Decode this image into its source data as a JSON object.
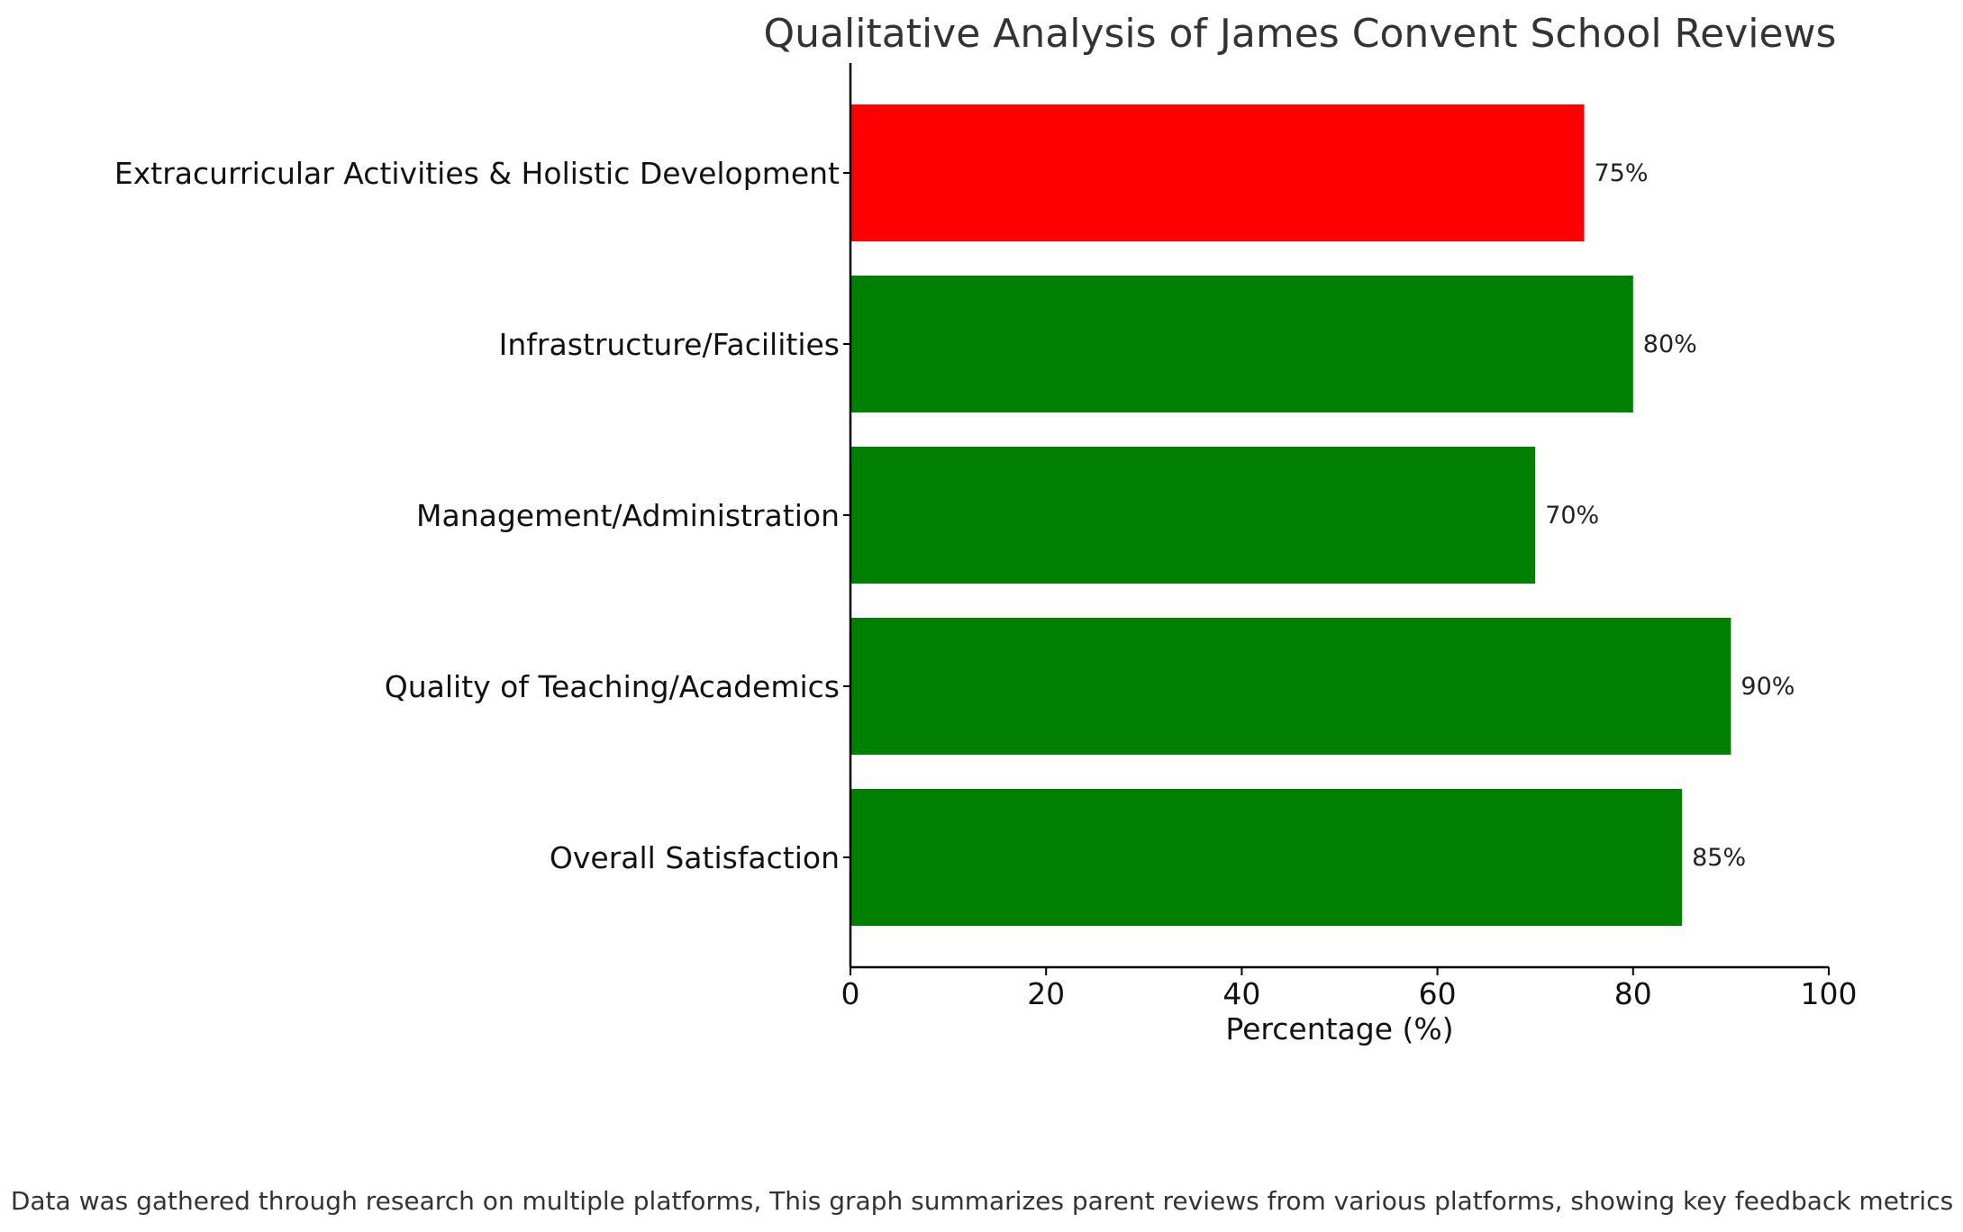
{
  "chart_data": {
    "type": "bar",
    "orientation": "horizontal",
    "title": "Qualitative Analysis of James Convent School Reviews",
    "xlabel": "Percentage (%)",
    "ylabel": "",
    "xlim": [
      0,
      100
    ],
    "xticks": [
      0,
      20,
      40,
      60,
      80,
      100
    ],
    "grid": false,
    "categories": [
      "Overall Satisfaction",
      "Quality of Teaching/Academics",
      "Management/Administration",
      "Infrastructure/Facilities",
      "Extracurricular Activities & Holistic Development"
    ],
    "values": [
      85,
      90,
      70,
      80,
      75
    ],
    "data_labels": [
      "85%",
      "90%",
      "70%",
      "80%",
      "75%"
    ],
    "bar_colors": [
      "#008000",
      "#008000",
      "#008000",
      "#008000",
      "#ff0000"
    ],
    "footnote": "Data was gathered through research on multiple platforms, This graph summarizes parent reviews from various platforms, showing key feedback metrics"
  }
}
